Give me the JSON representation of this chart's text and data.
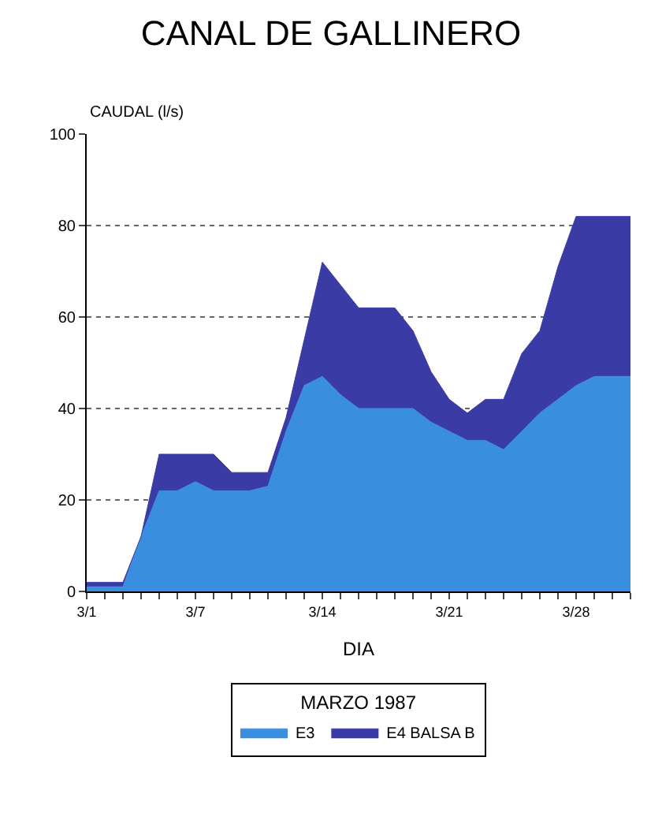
{
  "chart_data": {
    "type": "area",
    "title": "CANAL DE GALLINERO",
    "ylabel": "CAUDAL (l/s)",
    "xlabel": "DIA",
    "legend_title": "MARZO 1987",
    "categories": [
      "3/1",
      null,
      null,
      null,
      null,
      null,
      "3/7",
      null,
      null,
      null,
      null,
      null,
      null,
      "3/14",
      null,
      null,
      null,
      null,
      null,
      null,
      "3/21",
      null,
      null,
      null,
      null,
      null,
      null,
      "3/28",
      null,
      null,
      null
    ],
    "stacked": true,
    "series": [
      {
        "name": "E3",
        "color": "#3a8ee0",
        "values": [
          1,
          1,
          1,
          12,
          22,
          22,
          24,
          22,
          22,
          22,
          23,
          35,
          45,
          47,
          43,
          40,
          40,
          40,
          40,
          37,
          35,
          33,
          33,
          31,
          35,
          39,
          42,
          45,
          47,
          47,
          47
        ]
      },
      {
        "name": "E4 BALSA B",
        "color": "#3b3ba6",
        "values": [
          1,
          1,
          1,
          0,
          8,
          8,
          6,
          8,
          4,
          4,
          3,
          3,
          10,
          25,
          24,
          22,
          22,
          22,
          17,
          11,
          7,
          6,
          9,
          11,
          17,
          18,
          29,
          37,
          35,
          35,
          35
        ]
      }
    ],
    "ylim": [
      0,
      100
    ],
    "yticks": [
      0,
      20,
      40,
      60,
      80,
      100
    ],
    "grid": "y",
    "legend": "bottom"
  }
}
